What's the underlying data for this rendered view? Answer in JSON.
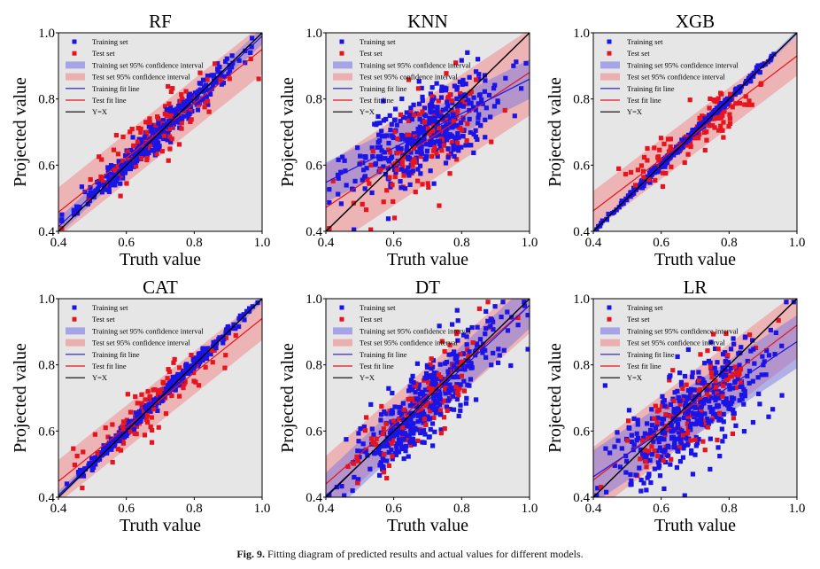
{
  "figure_caption": {
    "label": "Fig. 9.",
    "text": "Fitting diagram of predicted results and actual values for different models."
  },
  "legend_entries": [
    "Training set",
    "Test set",
    "Training set 95% confidence interval",
    "Test set 95% confidence interval",
    "Training fit line",
    "Test fit line",
    "Y=X"
  ],
  "colors": {
    "plot_bg": "#e6e6e6",
    "training": "#1a14e6",
    "test": "#e6141e",
    "train_band": "#6e6ee6",
    "test_band": "#f08a8a",
    "yx": "#000000"
  },
  "chart_data": [
    {
      "type": "scatter",
      "title": "RF",
      "xlabel": "Truth value",
      "ylabel": "Projected value",
      "xlim": [
        0.4,
        1.0
      ],
      "ylim": [
        0.4,
        1.0
      ],
      "xticks": [
        "0.4",
        "0.6",
        "0.8",
        "1.0"
      ],
      "yticks": [
        "0.4",
        "0.6",
        "0.8",
        "1.0"
      ],
      "train_fit": {
        "slope": 0.96,
        "intercept": 0.03
      },
      "train_ci_halfwidth": 0.025,
      "test_fit": {
        "slope": 0.82,
        "intercept": 0.13
      },
      "test_ci_halfwidth": 0.075,
      "train_spread": 0.02,
      "test_spread": 0.045,
      "train_points": 320,
      "test_points": 110
    },
    {
      "type": "scatter",
      "title": "KNN",
      "xlabel": "Truth value",
      "ylabel": "Projected value",
      "xlim": [
        0.4,
        1.0
      ],
      "ylim": [
        0.4,
        1.0
      ],
      "xticks": [
        "0.4",
        "0.6",
        "0.8",
        "1.0"
      ],
      "yticks": [
        "0.4",
        "0.6",
        "0.8",
        "1.0"
      ],
      "train_fit": {
        "slope": 0.52,
        "intercept": 0.34
      },
      "train_ci_halfwidth": 0.06,
      "test_fit": {
        "slope": 0.68,
        "intercept": 0.2
      },
      "test_ci_halfwidth": 0.13,
      "train_spread": 0.065,
      "test_spread": 0.07,
      "train_points": 320,
      "test_points": 110
    },
    {
      "type": "scatter",
      "title": "XGB",
      "xlabel": "Truth value",
      "ylabel": "Projected value",
      "xlim": [
        0.4,
        1.0
      ],
      "ylim": [
        0.4,
        1.0
      ],
      "xticks": [
        "0.4",
        "0.6",
        "0.8",
        "1.0"
      ],
      "yticks": [
        "0.4",
        "0.6",
        "0.8",
        "1.0"
      ],
      "train_fit": {
        "slope": 1.0,
        "intercept": 0.0
      },
      "train_ci_halfwidth": 0.008,
      "test_fit": {
        "slope": 0.78,
        "intercept": 0.15
      },
      "test_ci_halfwidth": 0.06,
      "train_spread": 0.006,
      "test_spread": 0.035,
      "train_points": 320,
      "test_points": 110
    },
    {
      "type": "scatter",
      "title": "CAT",
      "xlabel": "Truth value",
      "ylabel": "Projected value",
      "xlim": [
        0.4,
        1.0
      ],
      "ylim": [
        0.4,
        1.0
      ],
      "xticks": [
        "0.4",
        "0.6",
        "0.8",
        "1.0"
      ],
      "yticks": [
        "0.4",
        "0.6",
        "0.8",
        "1.0"
      ],
      "train_fit": {
        "slope": 0.99,
        "intercept": 0.01
      },
      "train_ci_halfwidth": 0.012,
      "test_fit": {
        "slope": 0.82,
        "intercept": 0.12
      },
      "test_ci_halfwidth": 0.065,
      "train_spread": 0.01,
      "test_spread": 0.04,
      "train_points": 320,
      "test_points": 110
    },
    {
      "type": "scatter",
      "title": "DT",
      "xlabel": "Truth value",
      "ylabel": "Projected value",
      "xlim": [
        0.4,
        1.0
      ],
      "ylim": [
        0.4,
        1.0
      ],
      "xticks": [
        "0.4",
        "0.6",
        "0.8",
        "1.0"
      ],
      "yticks": [
        "0.4",
        "0.6",
        "0.8",
        "1.0"
      ],
      "train_fit": {
        "slope": 0.96,
        "intercept": 0.02
      },
      "train_ci_halfwidth": 0.07,
      "test_fit": {
        "slope": 0.9,
        "intercept": 0.08
      },
      "test_ci_halfwidth": 0.085,
      "train_spread": 0.06,
      "test_spread": 0.065,
      "train_points": 320,
      "test_points": 110
    },
    {
      "type": "scatter",
      "title": "LR",
      "xlabel": "Truth value",
      "ylabel": "Projected value",
      "xlim": [
        0.4,
        1.0
      ],
      "ylim": [
        0.4,
        1.0
      ],
      "xticks": [
        "0.4",
        "0.6",
        "0.8",
        "1.0"
      ],
      "yticks": [
        "0.4",
        "0.6",
        "0.8",
        "1.0"
      ],
      "train_fit": {
        "slope": 0.68,
        "intercept": 0.19
      },
      "train_ci_halfwidth": 0.08,
      "test_fit": {
        "slope": 0.78,
        "intercept": 0.14
      },
      "test_ci_halfwidth": 0.1,
      "train_spread": 0.07,
      "test_spread": 0.075,
      "train_points": 320,
      "test_points": 110
    }
  ]
}
